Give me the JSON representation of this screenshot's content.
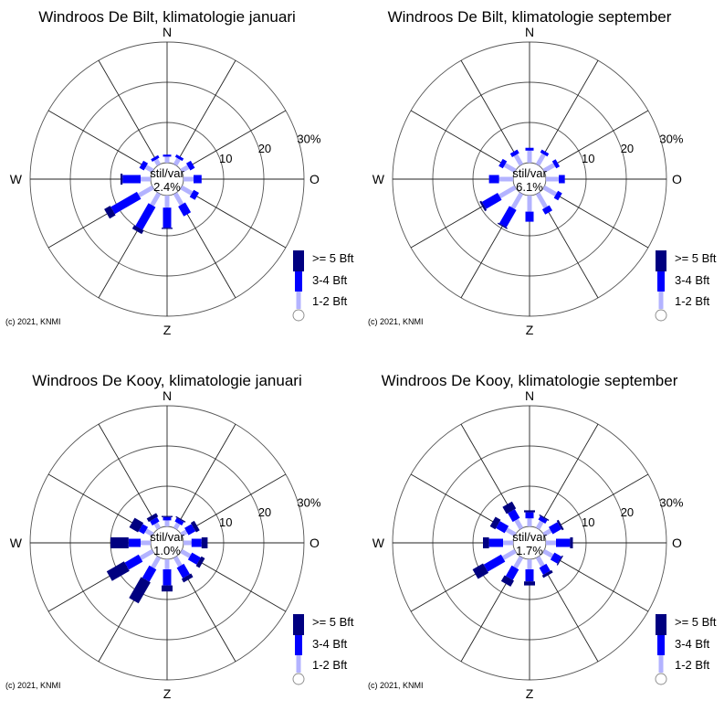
{
  "colors": {
    "strong": "#000080",
    "moderate": "#0000ff",
    "light": "#b3b3ff",
    "grid": "#555555",
    "spoke": "#222222"
  },
  "compass": {
    "n": "N",
    "e": "O",
    "s": "Z",
    "w": "W"
  },
  "ring_labels": [
    "10",
    "20",
    "30%"
  ],
  "legend": {
    "strong": ">= 5 Bft",
    "moderate": "3-4 Bft",
    "light": "1-2 Bft"
  },
  "credit": "(c) 2021, KNMI",
  "calm_label": "stil/var",
  "chart_data": [
    {
      "type": "wind-rose",
      "title": "Windroos De Bilt, klimatologie januari",
      "calm": "2.4%",
      "directions_deg": [
        0,
        30,
        60,
        90,
        120,
        150,
        180,
        210,
        240,
        270,
        300,
        330
      ],
      "series": [
        {
          "name": "1-2 Bft",
          "values": [
            1.5,
            1.7,
            2.0,
            2.5,
            3.0,
            3.2,
            3.0,
            3.4,
            4.0,
            2.5,
            2.0,
            1.5
          ]
        },
        {
          "name": "3-4 Bft",
          "values": [
            0.5,
            0.7,
            1.3,
            2.0,
            1.5,
            2.8,
            5.0,
            6.5,
            7.5,
            4.5,
            1.3,
            0.7
          ]
        },
        {
          "name": ">= 5 Bft",
          "values": [
            0,
            0,
            0,
            0,
            0,
            0,
            0.3,
            1.0,
            1.7,
            0.5,
            0,
            0
          ]
        }
      ],
      "rmax": 30
    },
    {
      "type": "wind-rose",
      "title": "Windroos De Bilt, klimatologie september",
      "calm": "6.1%",
      "directions_deg": [
        0,
        30,
        60,
        90,
        120,
        150,
        180,
        210,
        240,
        270,
        300,
        330
      ],
      "series": [
        {
          "name": "1-2 Bft",
          "values": [
            3.0,
            3.0,
            3.0,
            3.2,
            3.5,
            4.0,
            4.0,
            4.2,
            4.5,
            3.5,
            3.0,
            2.8
          ]
        },
        {
          "name": "3-4 Bft",
          "values": [
            0.7,
            0.8,
            1.0,
            1.5,
            1.2,
            1.5,
            2.5,
            5.0,
            4.5,
            2.5,
            1.2,
            1.0
          ]
        },
        {
          "name": ">= 5 Bft",
          "values": [
            0,
            0,
            0,
            0,
            0,
            0,
            0,
            0.3,
            0.5,
            0,
            0,
            0
          ]
        }
      ],
      "rmax": 30
    },
    {
      "type": "wind-rose",
      "title": "Windroos De Kooy, klimatologie januari",
      "calm": "1.0%",
      "directions_deg": [
        0,
        30,
        60,
        90,
        120,
        150,
        180,
        210,
        240,
        270,
        300,
        330
      ],
      "series": [
        {
          "name": "1-2 Bft",
          "values": [
            1.5,
            1.5,
            1.5,
            2.0,
            2.5,
            2.5,
            2.5,
            3.0,
            3.5,
            2.5,
            2.0,
            1.5
          ]
        },
        {
          "name": "3-4 Bft",
          "values": [
            0.8,
            1.0,
            2.0,
            2.5,
            2.5,
            3.0,
            4.0,
            3.5,
            4.0,
            3.0,
            1.5,
            1.2
          ]
        },
        {
          "name": ">= 5 Bft",
          "values": [
            0.3,
            0.3,
            1.0,
            1.5,
            1.0,
            1.0,
            1.5,
            6.0,
            5.0,
            4.5,
            2.5,
            1.0
          ]
        }
      ],
      "rmax": 30
    },
    {
      "type": "wind-rose",
      "title": "Windroos De Kooy, klimatologie september",
      "calm": "1.7%",
      "directions_deg": [
        0,
        30,
        60,
        90,
        120,
        150,
        180,
        210,
        240,
        270,
        300,
        330
      ],
      "series": [
        {
          "name": "1-2 Bft",
          "values": [
            2.0,
            2.0,
            2.0,
            2.5,
            2.5,
            2.5,
            2.5,
            3.0,
            3.5,
            2.5,
            2.5,
            2.5
          ]
        },
        {
          "name": "3-4 Bft",
          "values": [
            1.5,
            1.0,
            2.5,
            3.5,
            2.0,
            2.0,
            3.0,
            3.0,
            5.0,
            3.5,
            2.5,
            2.5
          ]
        },
        {
          "name": ">= 5 Bft",
          "values": [
            0.5,
            0.3,
            0.5,
            0.7,
            0.3,
            0.7,
            1.0,
            1.7,
            3.0,
            1.5,
            1.5,
            2.0
          ]
        }
      ],
      "rmax": 30
    }
  ]
}
